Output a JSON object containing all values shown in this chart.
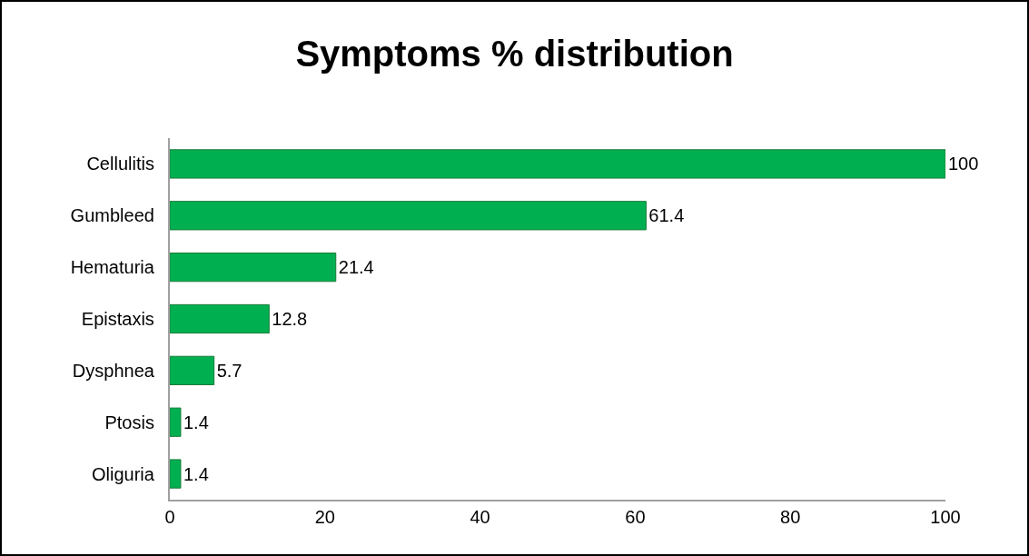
{
  "chart_data": {
    "type": "bar",
    "orientation": "horizontal",
    "title": "Symptoms % distribution",
    "categories": [
      "Cellulitis",
      "Gumbleed",
      "Hematuria",
      "Epistaxis",
      "Dysphnea",
      "Ptosis",
      "Oliguria"
    ],
    "values": [
      100,
      61.4,
      21.4,
      12.8,
      5.7,
      1.4,
      1.4
    ],
    "color": "#00b050",
    "xlim": [
      0,
      100
    ],
    "xticks": [
      0,
      20,
      40,
      60,
      80,
      100
    ],
    "grid": false,
    "legend": false,
    "data_labels": true
  }
}
